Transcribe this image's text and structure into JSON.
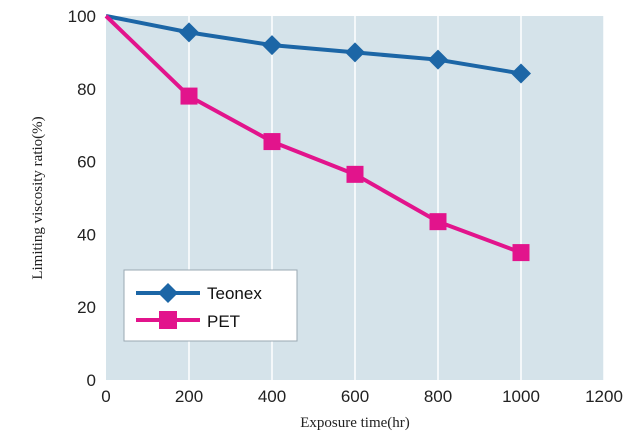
{
  "chart_data": {
    "type": "line",
    "xlabel": "Exposure time(hr)",
    "ylabel": "Limiting viscosity ratio(%)",
    "xlim": [
      0,
      1200
    ],
    "ylim": [
      0,
      100
    ],
    "x_ticks": [
      "0",
      "200",
      "400",
      "600",
      "800",
      "1000",
      "1200"
    ],
    "y_ticks": [
      "0",
      "20",
      "40",
      "60",
      "80",
      "100"
    ],
    "grid": "vertical",
    "legend_position": "bottom-left",
    "background_color": "#d5e3ea",
    "series": [
      {
        "name": "Teonex",
        "color": "#1c66a6",
        "marker": "diamond",
        "x": [
          0,
          200,
          400,
          600,
          800,
          1000
        ],
        "y": [
          100,
          95.5,
          92,
          90,
          88,
          84.2
        ]
      },
      {
        "name": "PET",
        "color": "#e2148c",
        "marker": "square",
        "x": [
          0,
          200,
          400,
          600,
          800,
          1000
        ],
        "y": [
          100,
          78,
          65.5,
          56.5,
          43.5,
          35
        ]
      }
    ]
  }
}
